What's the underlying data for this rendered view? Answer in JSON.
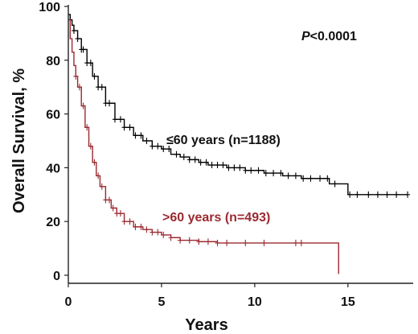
{
  "chart_data": {
    "type": "line",
    "xlabel": "Years",
    "ylabel": "Overall Survival, %",
    "xlim": [
      0,
      18.5
    ],
    "ylim": [
      0,
      100
    ],
    "xticks": [
      0,
      5,
      10,
      15
    ],
    "yticks": [
      0,
      20,
      40,
      60,
      80,
      100
    ],
    "grid": false,
    "annotation": {
      "p_italic": "P",
      "p_rest": "<0.0001"
    },
    "series": [
      {
        "name": "≤60 years (n=1188)",
        "color": "#000000",
        "x": [
          0,
          0.1,
          0.2,
          0.3,
          0.5,
          0.7,
          1,
          1.3,
          1.6,
          2,
          2.5,
          3,
          3.5,
          4,
          4.5,
          5,
          5.5,
          6,
          6.5,
          7,
          7.5,
          8,
          8.5,
          9,
          9.5,
          10,
          10.5,
          11,
          11.5,
          12,
          12.5,
          13,
          13.5,
          14,
          14.3,
          14.6,
          15,
          16,
          17,
          18.2
        ],
        "values": [
          97,
          95,
          93,
          91,
          88,
          84,
          79,
          74,
          70,
          64,
          58,
          55,
          52,
          50,
          48,
          47,
          45,
          44,
          43,
          42,
          41,
          41,
          40,
          40,
          39,
          39,
          38,
          38,
          37,
          37,
          36,
          36,
          36,
          34,
          34,
          34,
          30,
          30,
          30,
          30
        ]
      },
      {
        "name": ">60 years (n=493)",
        "color": "#9b2a30",
        "x": [
          0,
          0.1,
          0.2,
          0.3,
          0.4,
          0.5,
          0.7,
          0.9,
          1.1,
          1.3,
          1.5,
          1.7,
          2,
          2.3,
          2.6,
          3,
          3.5,
          4,
          4.5,
          5,
          5.5,
          6,
          7,
          8,
          9,
          10,
          11,
          12,
          13,
          14,
          14.5,
          14.5
        ],
        "values": [
          95,
          88,
          83,
          78,
          74,
          70,
          63,
          55,
          48,
          42,
          37,
          33,
          28,
          25,
          23,
          20,
          18,
          17,
          16,
          15,
          14,
          13,
          12.5,
          12,
          12,
          12,
          12,
          12,
          12,
          12,
          12,
          0.5
        ]
      }
    ],
    "censor_marks": [
      {
        "series": 0,
        "x": [
          0.3,
          0.5,
          0.7,
          0.8,
          1.0,
          1.2,
          1.4,
          1.6,
          1.8,
          2.0,
          2.2,
          2.5,
          2.8,
          3.0,
          3.3,
          3.6,
          3.9,
          4.2,
          4.5,
          4.8,
          5.1,
          5.4,
          5.8,
          6.2,
          6.5,
          6.8,
          7.1,
          7.4,
          7.7,
          8.0,
          8.3,
          8.6,
          8.9,
          9.2,
          9.5,
          9.8,
          10.2,
          10.6,
          11.0,
          11.4,
          11.8,
          12.2,
          12.6,
          13.0,
          13.5,
          13.9,
          14.3,
          15.1,
          15.5,
          16.1,
          16.6,
          17.1,
          17.6,
          18.2
        ]
      },
      {
        "series": 1,
        "x": [
          0.4,
          0.6,
          0.8,
          1.0,
          1.2,
          1.4,
          1.6,
          1.8,
          2.0,
          2.2,
          2.4,
          2.6,
          2.8,
          3.0,
          3.3,
          3.6,
          3.9,
          4.2,
          4.5,
          4.8,
          5.1,
          5.5,
          6.0,
          6.5,
          7.0,
          7.5,
          8.0,
          8.5,
          9.5,
          10.5,
          12.2,
          12.5
        ]
      }
    ]
  }
}
